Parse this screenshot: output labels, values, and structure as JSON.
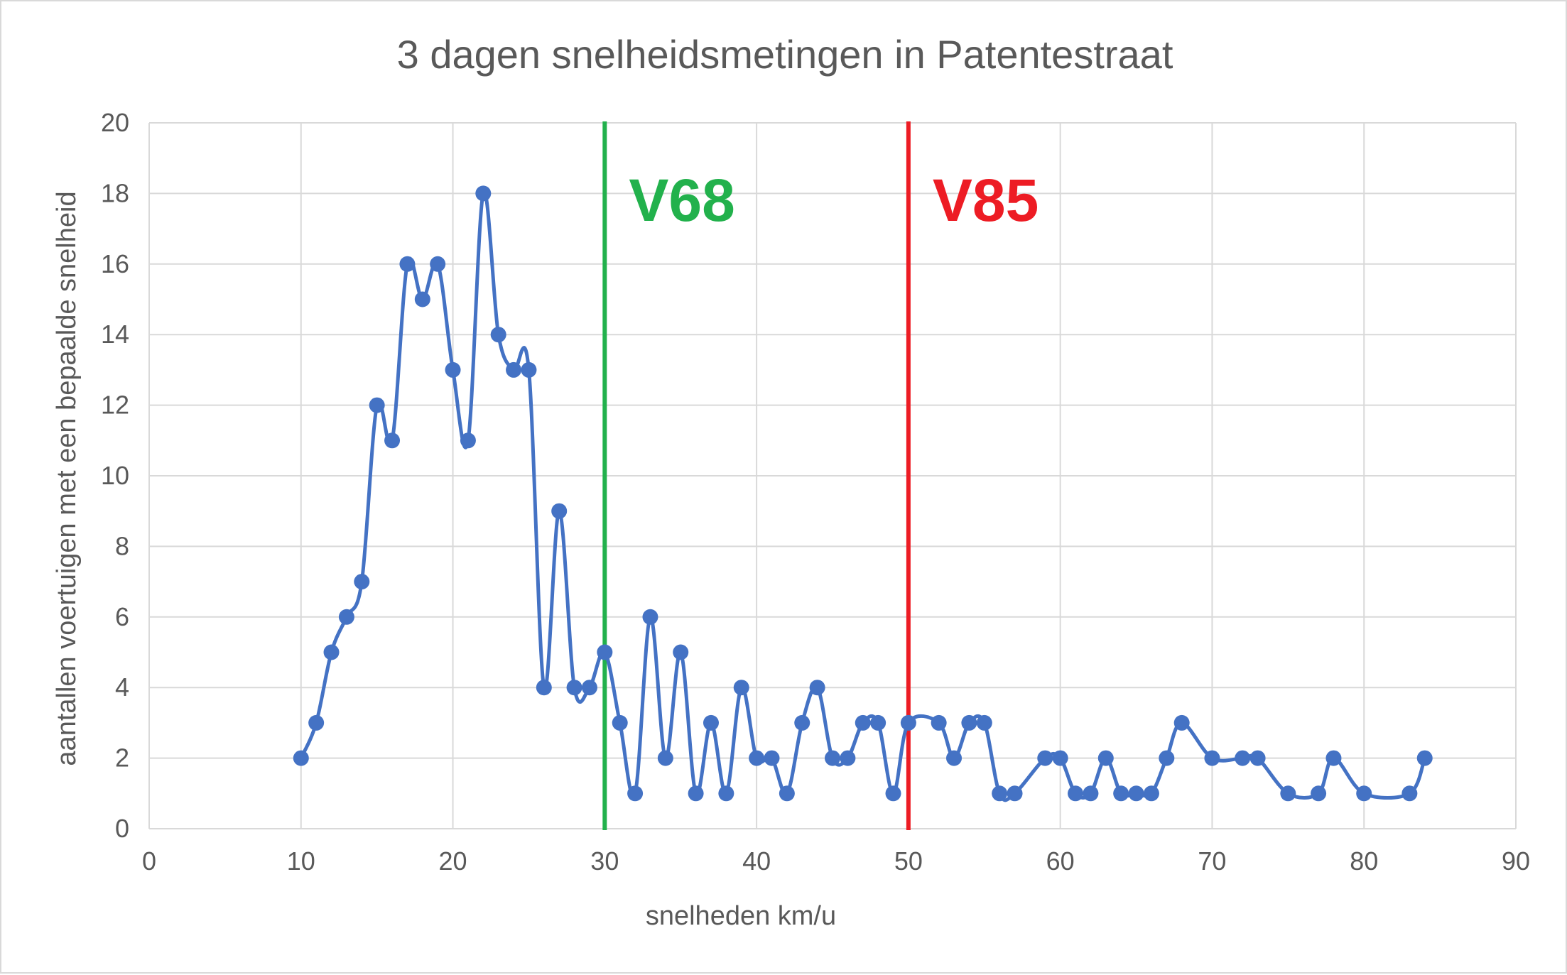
{
  "chart_data": {
    "type": "line",
    "title": "3 dagen snelheidsmetingen in Patentestraat",
    "xlabel": "snelheden km/u",
    "ylabel": "aantallen voertuigen met een bepaalde snelheid",
    "xlim": [
      0,
      90
    ],
    "ylim": [
      0,
      20
    ],
    "x_ticks": [
      "0",
      "10",
      "20",
      "30",
      "40",
      "50",
      "60",
      "70",
      "80",
      "90"
    ],
    "y_ticks": [
      "0",
      "2",
      "4",
      "6",
      "8",
      "10",
      "12",
      "14",
      "16",
      "18",
      "20"
    ],
    "grid": true,
    "legend": "none",
    "smooth": true,
    "series": [
      {
        "color": "#4472c4",
        "points": [
          [
            10,
            2
          ],
          [
            11,
            3
          ],
          [
            12,
            5
          ],
          [
            13,
            6
          ],
          [
            14,
            7
          ],
          [
            15,
            12
          ],
          [
            16,
            11
          ],
          [
            17,
            16
          ],
          [
            18,
            15
          ],
          [
            19,
            16
          ],
          [
            20,
            13
          ],
          [
            21,
            11
          ],
          [
            22,
            18
          ],
          [
            23,
            14
          ],
          [
            24,
            13
          ],
          [
            25,
            13
          ],
          [
            26,
            4
          ],
          [
            27,
            9
          ],
          [
            28,
            4
          ],
          [
            29,
            4
          ],
          [
            30,
            5
          ],
          [
            31,
            3
          ],
          [
            32,
            1
          ],
          [
            33,
            6
          ],
          [
            34,
            2
          ],
          [
            35,
            5
          ],
          [
            36,
            1
          ],
          [
            37,
            3
          ],
          [
            38,
            1
          ],
          [
            39,
            4
          ],
          [
            40,
            2
          ],
          [
            41,
            2
          ],
          [
            42,
            1
          ],
          [
            43,
            3
          ],
          [
            44,
            4
          ],
          [
            45,
            2
          ],
          [
            46,
            2
          ],
          [
            47,
            3
          ],
          [
            48,
            3
          ],
          [
            49,
            1
          ],
          [
            50,
            3
          ],
          [
            52,
            3
          ],
          [
            53,
            2
          ],
          [
            54,
            3
          ],
          [
            55,
            3
          ],
          [
            56,
            1
          ],
          [
            57,
            1
          ],
          [
            59,
            2
          ],
          [
            60,
            2
          ],
          [
            61,
            1
          ],
          [
            62,
            1
          ],
          [
            63,
            2
          ],
          [
            64,
            1
          ],
          [
            65,
            1
          ],
          [
            66,
            1
          ],
          [
            67,
            2
          ],
          [
            68,
            3
          ],
          [
            70,
            2
          ],
          [
            72,
            2
          ],
          [
            73,
            2
          ],
          [
            75,
            1
          ],
          [
            77,
            1
          ],
          [
            78,
            2
          ],
          [
            80,
            1
          ],
          [
            83,
            1
          ],
          [
            84,
            2
          ]
        ]
      }
    ],
    "reference_lines": [
      {
        "x": 30,
        "label": "V68",
        "color": "#22b14c"
      },
      {
        "x": 50,
        "label": "V85",
        "color": "#ed1c24"
      }
    ]
  }
}
